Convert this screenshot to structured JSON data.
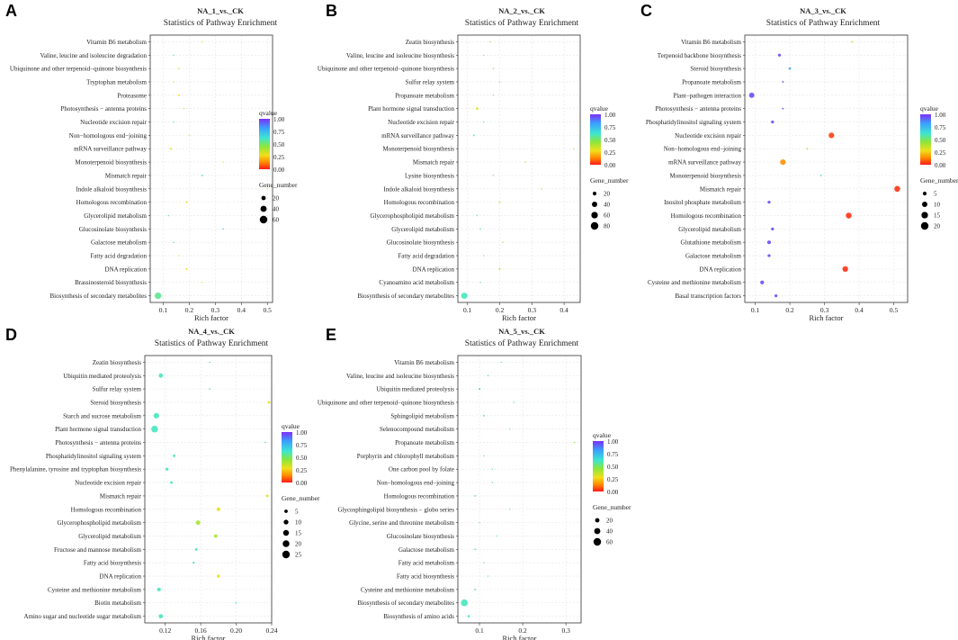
{
  "legend_common": {
    "qvalue_title": "qvalue",
    "qvalue_ticks": [
      "1.00",
      "0.75",
      "0.50",
      "0.25",
      "0.00"
    ],
    "gene_title": "Gene_number",
    "colors": [
      "#7b2ff7",
      "#3aa0ff",
      "#3de6d0",
      "#8ce63a",
      "#f0e01a",
      "#ff8c00",
      "#ff1a1a"
    ]
  },
  "chart_data": [
    {
      "type": "scatter",
      "panel": "A",
      "title": "NA_1_vs._CK",
      "subtitle": "Statistics of Pathway Enrichment",
      "xlabel": "Rich factor",
      "xlim": [
        0.05,
        0.52
      ],
      "xticks": [
        0.1,
        0.2,
        0.3,
        0.4,
        0.5
      ],
      "xtick_labels": [
        "0.1",
        "0.2",
        "0.3",
        "0.4",
        "0.5"
      ],
      "gene_legend": {
        "values": [
          20,
          40,
          60
        ],
        "labels": [
          "20",
          "40",
          "60"
        ]
      },
      "size_max": 60,
      "points": [
        {
          "pathway": "Vitamin B6 metabolism",
          "rich": 0.25,
          "genes": 1,
          "q": 0.3
        },
        {
          "pathway": "Valine, leucine and isoleucine degradation",
          "rich": 0.14,
          "genes": 2,
          "q": 0.55
        },
        {
          "pathway": "Ubiquinone and other terpenoid−quinone biosynthesis",
          "rich": 0.16,
          "genes": 2,
          "q": 0.35
        },
        {
          "pathway": "Tryptophan metabolism",
          "rich": 0.14,
          "genes": 2,
          "q": 0.35
        },
        {
          "pathway": "Proteasome",
          "rich": 0.16,
          "genes": 3,
          "q": 0.25
        },
        {
          "pathway": "Photosynthesis − antenna proteins",
          "rich": 0.18,
          "genes": 1,
          "q": 0.25
        },
        {
          "pathway": "Nucleotide excision repair",
          "rich": 0.14,
          "genes": 2,
          "q": 0.55
        },
        {
          "pathway": "Non−homologous end−joining",
          "rich": 0.2,
          "genes": 1,
          "q": 0.3
        },
        {
          "pathway": "mRNA surveillance pathway",
          "rich": 0.13,
          "genes": 4,
          "q": 0.3
        },
        {
          "pathway": "Monoterpenoid biosynthesis",
          "rich": 0.33,
          "genes": 1,
          "q": 0.3
        },
        {
          "pathway": "Mismatch repair",
          "rich": 0.25,
          "genes": 3,
          "q": 0.55
        },
        {
          "pathway": "Indole alkaloid biosynthesis",
          "rich": 0.5,
          "genes": 1,
          "q": 0.3
        },
        {
          "pathway": "Homologous recombination",
          "rich": 0.19,
          "genes": 3,
          "q": 0.25
        },
        {
          "pathway": "Glycerolipid metabolism",
          "rich": 0.12,
          "genes": 2,
          "q": 0.55
        },
        {
          "pathway": "Glucosinolate biosynthesis",
          "rich": 0.33,
          "genes": 1,
          "q": 0.75
        },
        {
          "pathway": "Galactose metabolism",
          "rich": 0.14,
          "genes": 2,
          "q": 0.55
        },
        {
          "pathway": "Fatty acid degradation",
          "rich": 0.16,
          "genes": 1,
          "q": 0.3
        },
        {
          "pathway": "DNA replication",
          "rich": 0.19,
          "genes": 3,
          "q": 0.25
        },
        {
          "pathway": "Brassinosteroid biosynthesis",
          "rich": 0.25,
          "genes": 1,
          "q": 0.3
        },
        {
          "pathway": "Biosynthesis of secondary metabolites",
          "rich": 0.08,
          "genes": 45,
          "q": 0.55
        }
      ]
    },
    {
      "type": "scatter",
      "panel": "B",
      "title": "NA_2_vs._CK",
      "subtitle": "Statistics of Pathway Enrichment",
      "xlabel": "Rich factor",
      "xlim": [
        0.07,
        0.45
      ],
      "xticks": [
        0.1,
        0.2,
        0.3,
        0.4
      ],
      "xtick_labels": [
        "0.1",
        "0.2",
        "0.3",
        "0.4"
      ],
      "gene_legend": {
        "values": [
          20,
          40,
          60,
          80
        ],
        "labels": [
          "20",
          "40",
          "60",
          "80"
        ]
      },
      "size_max": 80,
      "points": [
        {
          "pathway": "Zeatin biosynthesis",
          "rich": 0.17,
          "genes": 2,
          "q": 0.45
        },
        {
          "pathway": "Valine, leucine and isoleucine biosynthesis",
          "rich": 0.15,
          "genes": 1,
          "q": 0.45
        },
        {
          "pathway": "Ubiquinone and other terpenoid−quinone biosynthesis",
          "rich": 0.18,
          "genes": 2,
          "q": 0.45
        },
        {
          "pathway": "Sulfur relay system",
          "rich": 0.2,
          "genes": 1,
          "q": 0.45
        },
        {
          "pathway": "Propanoate metabolism",
          "rich": 0.18,
          "genes": 1,
          "q": 0.45
        },
        {
          "pathway": "Plant hormone signal transduction",
          "rich": 0.13,
          "genes": 9,
          "q": 0.3
        },
        {
          "pathway": "Nucleotide excision repair",
          "rich": 0.15,
          "genes": 3,
          "q": 0.55
        },
        {
          "pathway": "mRNA surveillance pathway",
          "rich": 0.12,
          "genes": 4,
          "q": 0.55
        },
        {
          "pathway": "Monoterpenoid biosynthesis",
          "rich": 0.43,
          "genes": 1,
          "q": 0.45
        },
        {
          "pathway": "Mismatch repair",
          "rich": 0.28,
          "genes": 3,
          "q": 0.3
        },
        {
          "pathway": "Lysine biosynthesis",
          "rich": 0.18,
          "genes": 1,
          "q": 0.45
        },
        {
          "pathway": "Indole alkaloid biosynthesis",
          "rich": 0.33,
          "genes": 1,
          "q": 0.45
        },
        {
          "pathway": "Homologous recombination",
          "rich": 0.2,
          "genes": 4,
          "q": 0.35
        },
        {
          "pathway": "Glycerophospholipid metabolism",
          "rich": 0.13,
          "genes": 3,
          "q": 0.55
        },
        {
          "pathway": "Glycerolipid metabolism",
          "rich": 0.14,
          "genes": 3,
          "q": 0.55
        },
        {
          "pathway": "Glucosinolate biosynthesis",
          "rich": 0.21,
          "genes": 2,
          "q": 0.45
        },
        {
          "pathway": "Fatty acid degradation",
          "rich": 0.15,
          "genes": 2,
          "q": 0.45
        },
        {
          "pathway": "DNA replication",
          "rich": 0.2,
          "genes": 4,
          "q": 0.35
        },
        {
          "pathway": "Cyanoamino acid metabolism",
          "rich": 0.14,
          "genes": 2,
          "q": 0.55
        },
        {
          "pathway": "Biosynthesis of secondary metabolites",
          "rich": 0.09,
          "genes": 55,
          "q": 0.6
        }
      ]
    },
    {
      "type": "scatter",
      "panel": "C",
      "title": "NA_3_vs._CK",
      "subtitle": "Statistics of Pathway Enrichment",
      "xlabel": "Rich factor",
      "xlim": [
        0.07,
        0.54
      ],
      "xticks": [
        0.1,
        0.2,
        0.3,
        0.4,
        0.5
      ],
      "xtick_labels": [
        "0.1",
        "0.2",
        "0.3",
        "0.4",
        "0.5"
      ],
      "gene_legend": {
        "values": [
          5,
          10,
          15,
          20
        ],
        "labels": [
          "5",
          "10",
          "15",
          "20"
        ]
      },
      "size_max": 20,
      "points": [
        {
          "pathway": "Vitamin B6 metabolism",
          "rich": 0.38,
          "genes": 1,
          "q": 0.4
        },
        {
          "pathway": "Terpenoid backbone biosynthesis",
          "rich": 0.17,
          "genes": 3,
          "q": 0.95
        },
        {
          "pathway": "Steroid biosynthesis",
          "rich": 0.2,
          "genes": 2,
          "q": 0.8
        },
        {
          "pathway": "Propanoate metabolism",
          "rich": 0.18,
          "genes": 1,
          "q": 0.95
        },
        {
          "pathway": "Plant−pathogen interaction",
          "rich": 0.09,
          "genes": 10,
          "q": 0.95
        },
        {
          "pathway": "Photosynthesis − antenna proteins",
          "rich": 0.18,
          "genes": 1,
          "q": 0.95
        },
        {
          "pathway": "Phosphatidylinositol signaling system",
          "rich": 0.15,
          "genes": 3,
          "q": 0.95
        },
        {
          "pathway": "Nucleotide excision repair",
          "rich": 0.32,
          "genes": 11,
          "q": 0.05
        },
        {
          "pathway": "Non−homologous end−joining",
          "rich": 0.25,
          "genes": 1,
          "q": 0.4
        },
        {
          "pathway": "mRNA surveillance pathway",
          "rich": 0.18,
          "genes": 11,
          "q": 0.15
        },
        {
          "pathway": "Monoterpenoid biosynthesis",
          "rich": 0.29,
          "genes": 1,
          "q": 0.6
        },
        {
          "pathway": "Mismatch repair",
          "rich": 0.51,
          "genes": 12,
          "q": 0.03
        },
        {
          "pathway": "Inositol phosphate metabolism",
          "rich": 0.14,
          "genes": 3,
          "q": 0.95
        },
        {
          "pathway": "Homologous recombination",
          "rich": 0.37,
          "genes": 12,
          "q": 0.03
        },
        {
          "pathway": "Glycerolipid metabolism",
          "rich": 0.15,
          "genes": 3,
          "q": 0.95
        },
        {
          "pathway": "Glutathione metabolism",
          "rich": 0.14,
          "genes": 5,
          "q": 0.95
        },
        {
          "pathway": "Galactose metabolism",
          "rich": 0.14,
          "genes": 3,
          "q": 0.95
        },
        {
          "pathway": "DNA replication",
          "rich": 0.36,
          "genes": 11,
          "q": 0.03
        },
        {
          "pathway": "Cysteine and methionine metabolism",
          "rich": 0.12,
          "genes": 5,
          "q": 0.95
        },
        {
          "pathway": "Basal transcription factors",
          "rich": 0.16,
          "genes": 3,
          "q": 0.95
        }
      ]
    },
    {
      "type": "scatter",
      "panel": "D",
      "title": "NA_4_vs._CK",
      "subtitle": "Statistics of Pathway Enrichment",
      "xlabel": "Rich factor",
      "xlim": [
        0.097,
        0.24
      ],
      "xticks": [
        0.12,
        0.16,
        0.2,
        0.24
      ],
      "xtick_labels": [
        "0.12",
        "0.16",
        "0.20",
        "0.24"
      ],
      "gene_legend": {
        "values": [
          5,
          10,
          15,
          20,
          25
        ],
        "labels": [
          "5",
          "10",
          "15",
          "20",
          "25"
        ]
      },
      "size_max": 25,
      "points": [
        {
          "pathway": "Zeatin biosynthesis",
          "rich": 0.17,
          "genes": 1,
          "q": 0.6
        },
        {
          "pathway": "Ubiquitin mediated proteolysis",
          "rich": 0.115,
          "genes": 8,
          "q": 0.6
        },
        {
          "pathway": "Sulfur relay system",
          "rich": 0.17,
          "genes": 1,
          "q": 0.6
        },
        {
          "pathway": "Steroid biosynthesis",
          "rich": 0.237,
          "genes": 3,
          "q": 0.3
        },
        {
          "pathway": "Starch and sucrose metabolism",
          "rich": 0.11,
          "genes": 13,
          "q": 0.6
        },
        {
          "pathway": "Plant hormone signal transduction",
          "rich": 0.108,
          "genes": 20,
          "q": 0.6
        },
        {
          "pathway": "Photosynthesis − antenna proteins",
          "rich": 0.233,
          "genes": 1,
          "q": 0.6
        },
        {
          "pathway": "Phosphatidylinositol signaling system",
          "rich": 0.13,
          "genes": 3,
          "q": 0.6
        },
        {
          "pathway": "Phenylalanine, tyrosine and tryptophan biosynthesis",
          "rich": 0.122,
          "genes": 4,
          "q": 0.6
        },
        {
          "pathway": "Nucleotide excision repair",
          "rich": 0.127,
          "genes": 3,
          "q": 0.6
        },
        {
          "pathway": "Mismatch repair",
          "rich": 0.235,
          "genes": 3,
          "q": 0.3
        },
        {
          "pathway": "Homologous recombination",
          "rich": 0.18,
          "genes": 6,
          "q": 0.3
        },
        {
          "pathway": "Glycerophospholipid metabolism",
          "rich": 0.157,
          "genes": 9,
          "q": 0.4
        },
        {
          "pathway": "Glycerolipid metabolism",
          "rich": 0.177,
          "genes": 5,
          "q": 0.4
        },
        {
          "pathway": "Fructose and mannose metabolism",
          "rich": 0.155,
          "genes": 3,
          "q": 0.6
        },
        {
          "pathway": "Fatty acid biosynthesis",
          "rich": 0.152,
          "genes": 2,
          "q": 0.6
        },
        {
          "pathway": "DNA replication",
          "rich": 0.18,
          "genes": 4,
          "q": 0.3
        },
        {
          "pathway": "Cysteine and methionine metabolism",
          "rich": 0.113,
          "genes": 6,
          "q": 0.6
        },
        {
          "pathway": "Biotin metabolism",
          "rich": 0.2,
          "genes": 1,
          "q": 0.6
        },
        {
          "pathway": "Amino sugar and nucleotide sugar metabolism",
          "rich": 0.115,
          "genes": 8,
          "q": 0.6
        }
      ]
    },
    {
      "type": "scatter",
      "panel": "E",
      "title": "NA_5_vs._CK",
      "subtitle": "Statistics of Pathway Enrichment",
      "xlabel": "Rich factor",
      "xlim": [
        0.05,
        0.335
      ],
      "xticks": [
        0.1,
        0.2,
        0.3
      ],
      "xtick_labels": [
        "0.1",
        "0.2",
        "0.3"
      ],
      "gene_legend": {
        "values": [
          20,
          40,
          60
        ],
        "labels": [
          "20",
          "40",
          "60"
        ]
      },
      "size_max": 60,
      "points": [
        {
          "pathway": "Vitamin B6 metabolism",
          "rich": 0.15,
          "genes": 2,
          "q": 0.55
        },
        {
          "pathway": "Valine, leucine and isoleucine biosynthesis",
          "rich": 0.12,
          "genes": 2,
          "q": 0.55
        },
        {
          "pathway": "Ubiquitin mediated proteolysis",
          "rich": 0.1,
          "genes": 4,
          "q": 0.6
        },
        {
          "pathway": "Ubiquinone and other terpenoid−quinone biosynthesis",
          "rich": 0.18,
          "genes": 1,
          "q": 0.55
        },
        {
          "pathway": "Sphingolipid metabolism",
          "rich": 0.11,
          "genes": 3,
          "q": 0.6
        },
        {
          "pathway": "Selenocompound metabolism",
          "rich": 0.17,
          "genes": 1,
          "q": 0.55
        },
        {
          "pathway": "Propanoate metabolism",
          "rich": 0.32,
          "genes": 2,
          "q": 0.45
        },
        {
          "pathway": "Porphyrin and chlorophyll metabolism",
          "rich": 0.11,
          "genes": 2,
          "q": 0.55
        },
        {
          "pathway": "One carbon pool by folate",
          "rich": 0.13,
          "genes": 1,
          "q": 0.55
        },
        {
          "pathway": "Non−homologous end−joining",
          "rich": 0.13,
          "genes": 1,
          "q": 0.55
        },
        {
          "pathway": "Homologous recombination",
          "rich": 0.09,
          "genes": 3,
          "q": 0.55
        },
        {
          "pathway": "Glycosphingolipid biosynthesis − globo series",
          "rich": 0.17,
          "genes": 1,
          "q": 0.55
        },
        {
          "pathway": "Glycine, serine and threonine metabolism",
          "rich": 0.1,
          "genes": 2,
          "q": 0.55
        },
        {
          "pathway": "Glucosinolate biosynthesis",
          "rich": 0.14,
          "genes": 1,
          "q": 0.55
        },
        {
          "pathway": "Galactose metabolism",
          "rich": 0.09,
          "genes": 3,
          "q": 0.55
        },
        {
          "pathway": "Fatty acid metabolism",
          "rich": 0.11,
          "genes": 2,
          "q": 0.55
        },
        {
          "pathway": "Fatty acid biosynthesis",
          "rich": 0.12,
          "genes": 2,
          "q": 0.55
        },
        {
          "pathway": "Cysteine and methionine metabolism",
          "rich": 0.09,
          "genes": 3,
          "q": 0.55
        },
        {
          "pathway": "Biosynthesis of secondary metabolites",
          "rich": 0.065,
          "genes": 50,
          "q": 0.6
        },
        {
          "pathway": "Biosynthesis of amino acids",
          "rich": 0.075,
          "genes": 6,
          "q": 0.6
        }
      ]
    }
  ]
}
